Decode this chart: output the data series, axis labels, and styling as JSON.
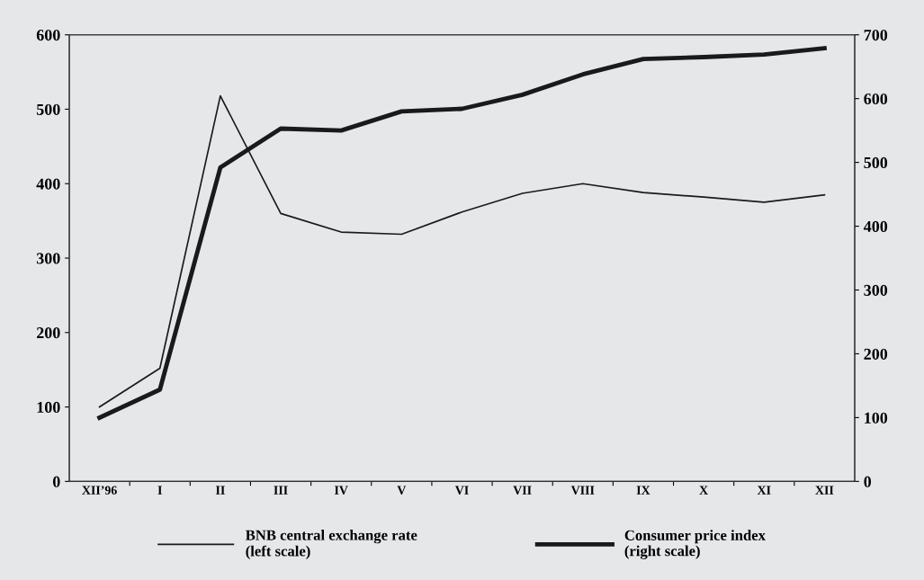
{
  "chart_data": {
    "type": "line",
    "categories": [
      "XII’96",
      "I",
      "II",
      "III",
      "IV",
      "V",
      "VI",
      "VII",
      "VIII",
      "IX",
      "X",
      "XI",
      "XII"
    ],
    "series": [
      {
        "name": "BNB central exchange rate\n(left scale)",
        "color": "#1a1a1a",
        "values": [
          100,
          152,
          518,
          360,
          335,
          332,
          362,
          387,
          400,
          388,
          382,
          375,
          385
        ]
      },
      {
        "name": "Consumer price index\n(right scale)",
        "color": "#1a1a1a",
        "axis": "y2",
        "values": [
          100,
          144,
          492,
          553,
          550,
          580,
          584,
          606,
          638,
          662,
          665,
          669,
          679
        ]
      }
    ],
    "ylim": [
      0,
      600
    ],
    "yticks": [
      0,
      100,
      200,
      300,
      400,
      500,
      600
    ],
    "y2lim": [
      0,
      700
    ],
    "y2ticks": [
      0,
      100,
      200,
      300,
      400,
      500,
      600,
      700
    ],
    "legend": "bottom",
    "grid": false,
    "marker": "none",
    "line_style": "solid"
  }
}
